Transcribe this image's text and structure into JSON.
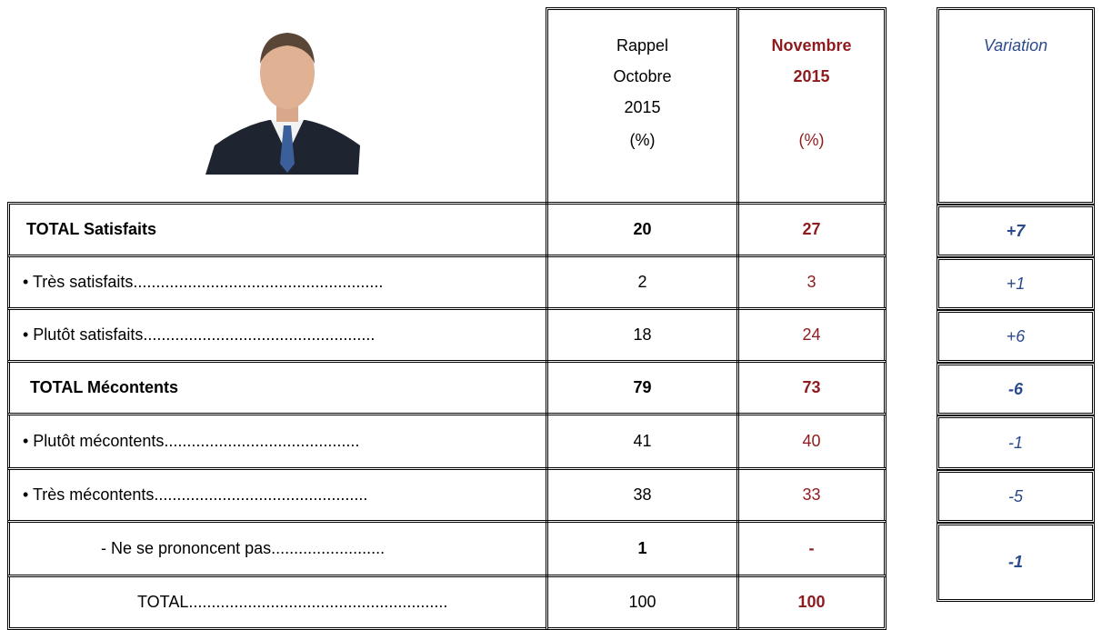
{
  "header": {
    "columns": [
      {
        "lines": [
          "Rappel",
          "Octobre",
          "2015",
          "(%)"
        ]
      },
      {
        "lines": [
          "Novembre",
          "2015",
          "(%)"
        ]
      },
      {
        "lines": [
          "Variation"
        ]
      }
    ]
  },
  "table": {
    "rows": [
      [
        "TOTAL Satisfaits",
        20,
        27,
        "+7"
      ],
      [
        "• Très satisfaits.......................................................",
        2,
        3,
        "+1"
      ],
      [
        "• Plutôt satisfaits...................................................",
        18,
        24,
        "+6"
      ],
      [
        "TOTAL Mécontents",
        79,
        73,
        "-6"
      ],
      [
        "• Plutôt mécontents...........................................",
        41,
        40,
        "-1"
      ],
      [
        "• Très mécontents...............................................",
        38,
        33,
        "-5"
      ],
      [
        "-    Ne se prononcent pas.........................",
        1,
        "-",
        "-1"
      ],
      [
        "TOTAL.........................................................",
        100,
        100
      ]
    ]
  }
}
